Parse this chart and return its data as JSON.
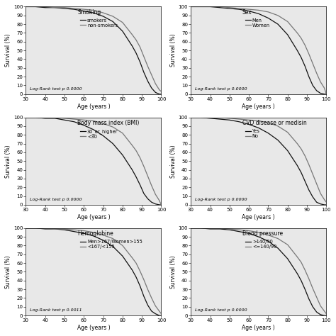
{
  "panels": [
    {
      "title": "Smoking",
      "legend_labels": [
        "smokers",
        "non-smokers"
      ],
      "line_colors": [
        "#111111",
        "#777777"
      ],
      "log_rank_text": "Log-Rank test p 0.0000",
      "curve1": {
        "x": [
          30,
          35,
          40,
          45,
          50,
          55,
          60,
          65,
          70,
          75,
          80,
          85,
          87,
          89,
          91,
          93,
          95,
          97,
          99,
          100
        ],
        "y": [
          100,
          100,
          99,
          99,
          98,
          97,
          95,
          93,
          89,
          83,
          72,
          55,
          47,
          37,
          25,
          15,
          7,
          2,
          0,
          0
        ]
      },
      "curve2": {
        "x": [
          30,
          35,
          40,
          45,
          50,
          55,
          60,
          65,
          70,
          75,
          80,
          85,
          87,
          89,
          91,
          93,
          95,
          97,
          99,
          100
        ],
        "y": [
          100,
          100,
          100,
          99,
          99,
          98,
          97,
          96,
          93,
          89,
          82,
          68,
          62,
          54,
          43,
          32,
          22,
          12,
          5,
          3
        ]
      }
    },
    {
      "title": "Sex",
      "legend_labels": [
        "Men",
        "Women"
      ],
      "line_colors": [
        "#111111",
        "#777777"
      ],
      "log_rank_text": "Log-Rank test p 0.0000",
      "curve1": {
        "x": [
          30,
          35,
          40,
          45,
          50,
          55,
          60,
          65,
          70,
          75,
          80,
          85,
          87,
          89,
          91,
          93,
          95,
          97,
          99,
          100
        ],
        "y": [
          100,
          100,
          100,
          99,
          98,
          97,
          95,
          92,
          87,
          80,
          68,
          50,
          42,
          32,
          20,
          10,
          4,
          1,
          0,
          0
        ]
      },
      "curve2": {
        "x": [
          30,
          35,
          40,
          45,
          50,
          55,
          60,
          65,
          70,
          75,
          80,
          85,
          87,
          89,
          91,
          93,
          95,
          97,
          99,
          100
        ],
        "y": [
          100,
          100,
          100,
          100,
          99,
          98,
          97,
          96,
          94,
          90,
          83,
          70,
          64,
          56,
          46,
          35,
          24,
          14,
          7,
          0
        ]
      }
    },
    {
      "title": "Body mass index (BMI)",
      "legend_labels": [
        "30_or_higher",
        "<30"
      ],
      "line_colors": [
        "#111111",
        "#777777"
      ],
      "log_rank_text": "Log-Rank test p 0.0000",
      "curve1": {
        "x": [
          30,
          35,
          40,
          45,
          50,
          55,
          60,
          65,
          70,
          75,
          80,
          85,
          87,
          89,
          91,
          93,
          95,
          97,
          99,
          100
        ],
        "y": [
          100,
          100,
          99,
          99,
          97,
          95,
          91,
          86,
          79,
          70,
          57,
          40,
          32,
          23,
          13,
          7,
          3,
          1,
          0,
          0
        ]
      },
      "curve2": {
        "x": [
          30,
          35,
          40,
          45,
          50,
          55,
          60,
          65,
          70,
          75,
          80,
          85,
          87,
          89,
          91,
          93,
          95,
          97,
          99,
          100
        ],
        "y": [
          100,
          100,
          100,
          100,
          99,
          98,
          97,
          96,
          93,
          89,
          82,
          68,
          62,
          54,
          44,
          33,
          22,
          12,
          5,
          0
        ]
      }
    },
    {
      "title": "CVD disease or medisin",
      "legend_labels": [
        "Yes",
        "No"
      ],
      "line_colors": [
        "#111111",
        "#777777"
      ],
      "log_rank_text": "Log-Rank test p 0.0000",
      "curve1": {
        "x": [
          30,
          35,
          40,
          45,
          50,
          55,
          60,
          65,
          70,
          75,
          80,
          85,
          87,
          89,
          91,
          93,
          95,
          97,
          99,
          100
        ],
        "y": [
          100,
          100,
          99,
          98,
          97,
          95,
          92,
          88,
          82,
          74,
          62,
          45,
          37,
          27,
          17,
          9,
          3,
          1,
          0,
          0
        ]
      },
      "curve2": {
        "x": [
          30,
          35,
          40,
          45,
          50,
          55,
          60,
          65,
          70,
          75,
          80,
          85,
          87,
          89,
          91,
          93,
          95,
          97,
          99,
          100
        ],
        "y": [
          100,
          100,
          100,
          100,
          99,
          98,
          97,
          96,
          94,
          90,
          83,
          70,
          64,
          56,
          46,
          35,
          24,
          13,
          6,
          3
        ]
      }
    },
    {
      "title": "Hemoglobine",
      "legend_labels": [
        "Men>167/Women>155",
        "<167/<155"
      ],
      "line_colors": [
        "#111111",
        "#777777"
      ],
      "log_rank_text": "Log-Rank test p 0.0011",
      "curve1": {
        "x": [
          30,
          35,
          40,
          45,
          50,
          55,
          60,
          65,
          70,
          75,
          80,
          85,
          87,
          89,
          91,
          93,
          95,
          97,
          99,
          100
        ],
        "y": [
          100,
          100,
          99,
          99,
          98,
          96,
          94,
          91,
          86,
          79,
          68,
          52,
          44,
          34,
          22,
          12,
          5,
          2,
          0,
          0
        ]
      },
      "curve2": {
        "x": [
          30,
          35,
          40,
          45,
          50,
          55,
          60,
          65,
          70,
          75,
          80,
          85,
          87,
          89,
          91,
          93,
          95,
          97,
          99,
          100
        ],
        "y": [
          100,
          100,
          100,
          99,
          99,
          98,
          97,
          95,
          92,
          88,
          80,
          66,
          60,
          51,
          41,
          30,
          20,
          11,
          5,
          2
        ]
      }
    },
    {
      "title": "Blood pressure",
      "legend_labels": [
        ">140/90",
        "<=140/90"
      ],
      "line_colors": [
        "#111111",
        "#777777"
      ],
      "log_rank_text": "Log-Rank test p 0.0000",
      "curve1": {
        "x": [
          30,
          35,
          40,
          45,
          50,
          55,
          60,
          65,
          70,
          75,
          80,
          85,
          87,
          89,
          91,
          93,
          95,
          97,
          99,
          100
        ],
        "y": [
          100,
          100,
          99,
          99,
          98,
          96,
          94,
          90,
          85,
          77,
          65,
          48,
          40,
          30,
          19,
          10,
          4,
          1,
          0,
          0
        ]
      },
      "curve2": {
        "x": [
          30,
          35,
          40,
          45,
          50,
          55,
          60,
          65,
          70,
          75,
          80,
          85,
          87,
          89,
          91,
          93,
          95,
          97,
          99,
          100
        ],
        "y": [
          100,
          100,
          100,
          100,
          99,
          98,
          97,
          95,
          92,
          88,
          81,
          67,
          61,
          52,
          42,
          31,
          21,
          11,
          5,
          2
        ]
      }
    }
  ],
  "xlim": [
    30,
    100
  ],
  "ylim": [
    0,
    100
  ],
  "xticks": [
    30,
    40,
    50,
    60,
    70,
    80,
    90,
    100
  ],
  "yticks": [
    0,
    10,
    20,
    30,
    40,
    50,
    60,
    70,
    80,
    90,
    100
  ],
  "xlabel": "Age (years )",
  "ylabel": "Survival (%)",
  "bg_color": "#e8e8e8",
  "tick_fontsize": 5,
  "label_fontsize": 5.5,
  "legend_fontsize": 4.8,
  "logrank_fontsize": 4.5,
  "title_fontsize": 5.5
}
